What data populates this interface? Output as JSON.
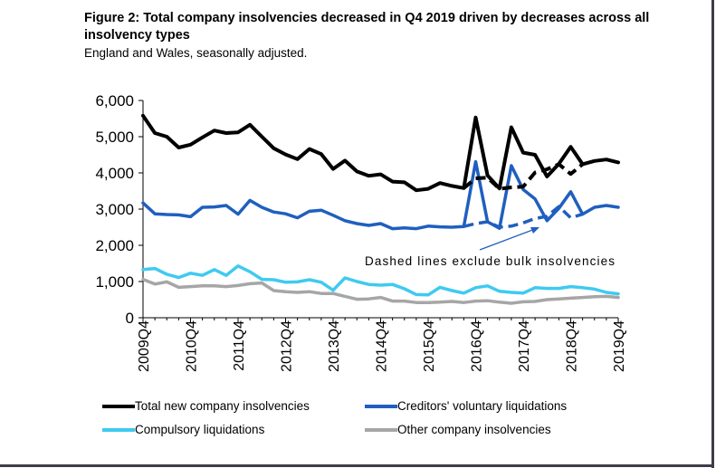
{
  "title": "Figure 2: Total company insolvencies decreased in Q4 2019 driven by decreases across all insolvency types",
  "subtitle": "England and Wales, seasonally adjusted.",
  "annotation": "Dashed lines exclude bulk insolvencies",
  "colors": {
    "total": "#000000",
    "cvl": "#1f5fbf",
    "compulsory": "#3fcaf0",
    "other": "#a6a6a6"
  },
  "legend": [
    {
      "key": "total",
      "label": "Total new company insolvencies"
    },
    {
      "key": "cvl",
      "label": "Creditors' voluntary liquidations"
    },
    {
      "key": "compulsory",
      "label": "Compulsory liquidations"
    },
    {
      "key": "other",
      "label": "Other company insolvencies"
    }
  ],
  "chart_data": {
    "type": "line",
    "title": "Figure 2: Total company insolvencies decreased in Q4 2019 driven by decreases across all insolvency types",
    "subtitle": "England and Wales, seasonally adjusted.",
    "xlabel": "",
    "ylabel": "",
    "ylim": [
      0,
      6000
    ],
    "yticks": [
      0,
      1000,
      2000,
      3000,
      4000,
      5000,
      6000
    ],
    "ytick_labels": [
      "0",
      "1,000",
      "2,000",
      "3,000",
      "4,000",
      "5,000",
      "6,000"
    ],
    "xtick_labels": [
      "2009Q4",
      "2010Q4",
      "2011Q4",
      "2012Q4",
      "2013Q4",
      "2014Q4",
      "2015Q4",
      "2016Q4",
      "2017Q4",
      "2018Q4",
      "2019Q4"
    ],
    "x": [
      "2009Q4",
      "2010Q1",
      "2010Q2",
      "2010Q3",
      "2010Q4",
      "2011Q1",
      "2011Q2",
      "2011Q3",
      "2011Q4",
      "2012Q1",
      "2012Q2",
      "2012Q3",
      "2012Q4",
      "2013Q1",
      "2013Q2",
      "2013Q3",
      "2013Q4",
      "2014Q1",
      "2014Q2",
      "2014Q3",
      "2014Q4",
      "2015Q1",
      "2015Q2",
      "2015Q3",
      "2015Q4",
      "2016Q1",
      "2016Q2",
      "2016Q3",
      "2016Q4",
      "2017Q1",
      "2017Q2",
      "2017Q3",
      "2017Q4",
      "2018Q1",
      "2018Q2",
      "2018Q3",
      "2018Q4",
      "2019Q1",
      "2019Q2",
      "2019Q3",
      "2019Q4"
    ],
    "grid": false,
    "legend_position": "bottom",
    "series": [
      {
        "name": "Total new company insolvencies",
        "key": "total",
        "style": "solid",
        "values": [
          5580,
          5100,
          5000,
          4700,
          4780,
          4980,
          5170,
          5100,
          5120,
          5330,
          5000,
          4680,
          4510,
          4380,
          4660,
          4520,
          4110,
          4340,
          4040,
          3920,
          3960,
          3760,
          3740,
          3520,
          3560,
          3720,
          3640,
          3580,
          5530,
          3930,
          3570,
          5260,
          4560,
          4500,
          3900,
          4250,
          4720,
          4240,
          4330,
          4370,
          4290
        ]
      },
      {
        "name": "Total excluding bulk insolvencies",
        "key": "total",
        "style": "dashed",
        "values": [
          null,
          null,
          null,
          null,
          null,
          null,
          null,
          null,
          null,
          null,
          null,
          null,
          null,
          null,
          null,
          null,
          null,
          null,
          null,
          null,
          null,
          null,
          null,
          null,
          null,
          null,
          null,
          3580,
          3850,
          3870,
          3560,
          3600,
          3620,
          4010,
          4100,
          4240,
          3970,
          4240,
          null,
          null,
          null
        ]
      },
      {
        "name": "Creditors' voluntary liquidations",
        "key": "cvl",
        "style": "solid",
        "values": [
          3170,
          2870,
          2850,
          2840,
          2790,
          3050,
          3060,
          3100,
          2860,
          3240,
          3050,
          2920,
          2870,
          2760,
          2940,
          2970,
          2830,
          2680,
          2600,
          2550,
          2600,
          2460,
          2480,
          2460,
          2530,
          2510,
          2500,
          2520,
          4310,
          2650,
          2470,
          4200,
          3540,
          3280,
          2680,
          3020,
          3480,
          2860,
          3050,
          3100,
          3050
        ]
      },
      {
        "name": "Creditors' voluntary liquidations excluding bulk",
        "key": "cvl",
        "style": "dashed",
        "values": [
          null,
          null,
          null,
          null,
          null,
          null,
          null,
          null,
          null,
          null,
          null,
          null,
          null,
          null,
          null,
          null,
          null,
          null,
          null,
          null,
          null,
          null,
          null,
          null,
          null,
          null,
          null,
          2520,
          2600,
          2650,
          2500,
          2530,
          2620,
          2740,
          2800,
          3070,
          2760,
          2860,
          null,
          null,
          null
        ]
      },
      {
        "name": "Compulsory liquidations",
        "key": "compulsory",
        "style": "solid",
        "values": [
          1330,
          1360,
          1200,
          1110,
          1230,
          1170,
          1330,
          1170,
          1430,
          1270,
          1060,
          1050,
          980,
          990,
          1050,
          980,
          760,
          1100,
          1000,
          920,
          900,
          920,
          800,
          640,
          630,
          840,
          750,
          680,
          830,
          880,
          730,
          700,
          680,
          830,
          810,
          810,
          860,
          830,
          790,
          700,
          660
        ]
      },
      {
        "name": "Other company insolvencies",
        "key": "other",
        "style": "solid",
        "values": [
          1060,
          930,
          990,
          840,
          860,
          880,
          880,
          860,
          890,
          940,
          960,
          750,
          720,
          700,
          720,
          670,
          670,
          590,
          510,
          520,
          560,
          460,
          460,
          420,
          420,
          430,
          450,
          420,
          460,
          470,
          430,
          400,
          440,
          450,
          500,
          520,
          540,
          560,
          580,
          590,
          560
        ]
      }
    ]
  }
}
